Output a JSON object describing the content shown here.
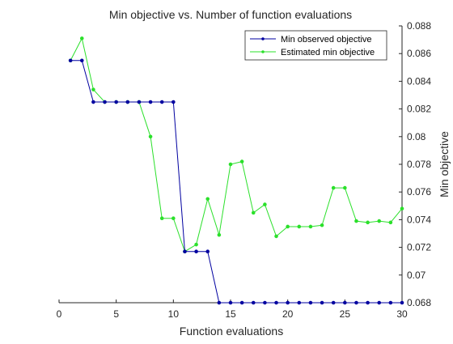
{
  "chart_data": {
    "type": "line",
    "title": "Min objective vs. Number of function evaluations",
    "xlabel": "Function evaluations",
    "ylabel": "Min objective",
    "xlim": [
      0,
      30
    ],
    "ylim": [
      0.068,
      0.088
    ],
    "y_axis_side": "right",
    "grid": false,
    "legend_position": "top-right",
    "x_ticks": [
      0,
      5,
      10,
      15,
      20,
      25,
      30
    ],
    "x_tick_labels": [
      "0",
      "5",
      "10",
      "15",
      "20",
      "25",
      "30"
    ],
    "y_ticks": [
      0.068,
      0.07,
      0.072,
      0.074,
      0.076,
      0.078,
      0.08,
      0.082,
      0.084,
      0.086,
      0.088
    ],
    "y_tick_labels": [
      "0.068",
      "0.07",
      "0.072",
      "0.074",
      "0.076",
      "0.078",
      "0.08",
      "0.082",
      "0.084",
      "0.086",
      "0.088"
    ],
    "x": [
      1,
      2,
      3,
      4,
      5,
      6,
      7,
      8,
      9,
      10,
      11,
      12,
      13,
      14,
      15,
      16,
      17,
      18,
      19,
      20,
      21,
      22,
      23,
      24,
      25,
      26,
      27,
      28,
      29,
      30
    ],
    "series": [
      {
        "name": "Min observed objective",
        "color": "#0000a0",
        "values": [
          0.0855,
          0.0855,
          0.0825,
          0.0825,
          0.0825,
          0.0825,
          0.0825,
          0.0825,
          0.0825,
          0.0825,
          0.0717,
          0.0717,
          0.0717,
          0.068,
          0.068,
          0.068,
          0.068,
          0.068,
          0.068,
          0.068,
          0.068,
          0.068,
          0.068,
          0.068,
          0.068,
          0.068,
          0.068,
          0.068,
          0.068,
          0.068
        ]
      },
      {
        "name": "Estimated min objective",
        "color": "#2be02b",
        "values": [
          0.0855,
          0.0871,
          0.0834,
          0.0825,
          0.0825,
          0.0825,
          0.0825,
          0.08,
          0.0741,
          0.0741,
          0.0717,
          0.0722,
          0.0755,
          0.0729,
          0.078,
          0.0782,
          0.0745,
          0.0751,
          0.0728,
          0.0735,
          0.0735,
          0.0735,
          0.0736,
          0.0763,
          0.0763,
          0.0739,
          0.0738,
          0.0739,
          0.0738,
          0.0748
        ]
      }
    ]
  }
}
